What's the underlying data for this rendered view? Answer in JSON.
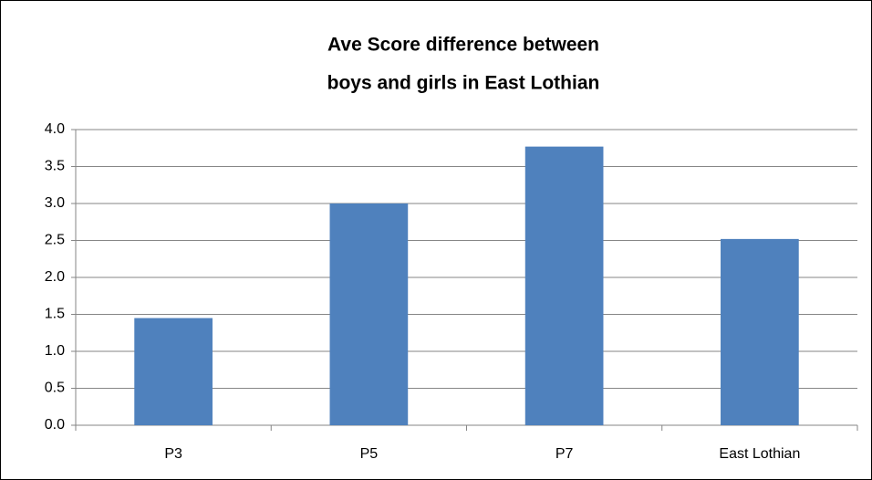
{
  "chart_data": {
    "type": "bar",
    "title": [
      "Ave Score difference between",
      "boys and girls in East Lothian"
    ],
    "categories": [
      "P3",
      "P5",
      "P7",
      "East Lothian"
    ],
    "values": [
      1.45,
      3.0,
      3.77,
      2.52
    ],
    "color": "#4f81bd",
    "ylim": [
      0,
      4
    ],
    "yticks": [
      {
        "value": 0,
        "label": "0.0"
      },
      0.5,
      {
        "value": 1,
        "label": "1.0"
      },
      1.5,
      {
        "value": 2,
        "label": "2.0"
      },
      2.5,
      {
        "value": 3,
        "label": "3.0"
      },
      3.5,
      {
        "value": 4,
        "label": "4.0"
      }
    ],
    "grid": true
  }
}
